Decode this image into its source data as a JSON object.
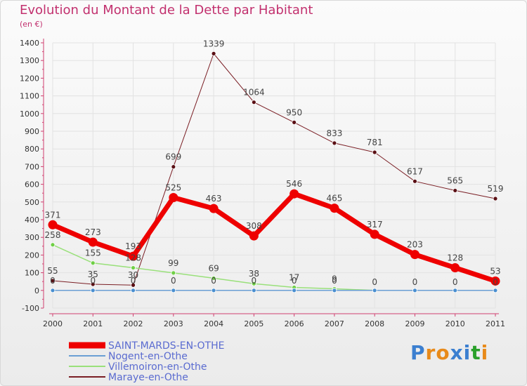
{
  "title": "Evolution du Montant de la Dette par Habitant",
  "subtitle": "(en €)",
  "logo": {
    "text": "Proxiti",
    "colors": [
      "#3b7fd0",
      "#e88a1a",
      "#e88a1a",
      "#3b7fd0",
      "#3b7fd0",
      "#2aa02a",
      "#e88a1a"
    ]
  },
  "chart_data": {
    "type": "line",
    "title": "Evolution du Montant de la Dette par Habitant",
    "ylabel": "(en €)",
    "xlabel": "",
    "ylim": [
      -100,
      1400
    ],
    "yticks": [
      -100,
      0,
      100,
      200,
      300,
      400,
      500,
      600,
      700,
      800,
      900,
      1000,
      1100,
      1200,
      1300,
      1400
    ],
    "x": [
      "2000",
      "2001",
      "2002",
      "2003",
      "2004",
      "2005",
      "2006",
      "2007",
      "2008",
      "2009",
      "2010",
      "2011"
    ],
    "series": [
      {
        "name": "Maraye-en-Othe",
        "color": "#7a1e24",
        "marker": "#5a0f14",
        "width": 1,
        "values": [
          55,
          35,
          30,
          699,
          1339,
          1064,
          950,
          833,
          781,
          617,
          565,
          519
        ],
        "labels": [
          "55",
          "35",
          "30",
          "699",
          "1339",
          "1064",
          "950",
          "833",
          "781",
          "617",
          "565",
          "519"
        ]
      },
      {
        "name": "Villemoiron-en-Othe",
        "color": "#99e07a",
        "marker": "#6fcf45",
        "width": 1.5,
        "values": [
          258,
          155,
          128,
          99,
          69,
          38,
          17,
          9,
          0,
          0,
          0,
          0
        ],
        "labels": [
          "258",
          "155",
          "128",
          "99",
          "69",
          "38",
          "17",
          "9",
          "",
          "",
          "",
          ""
        ]
      },
      {
        "name": "Nogent-en-Othe",
        "color": "#6a9fd4",
        "marker": "#4a8fd0",
        "width": 1.5,
        "values": [
          0,
          0,
          0,
          0,
          0,
          0,
          0,
          0,
          0,
          0,
          0,
          0
        ],
        "labels": [
          "0",
          "0",
          "0",
          "0",
          "0",
          "0",
          "0",
          "0",
          "",
          "",
          "",
          ""
        ]
      },
      {
        "name": "SAINT-MARDS-EN-OTHE",
        "color": "#ee0000",
        "marker": "#ee0000",
        "width": 7,
        "values": [
          371,
          273,
          193,
          525,
          463,
          308,
          546,
          465,
          317,
          203,
          128,
          53
        ],
        "labels": [
          "371",
          "273",
          "193",
          "525",
          "463",
          "308",
          "546",
          "465",
          "317",
          "203",
          "128",
          "53"
        ]
      }
    ],
    "extra_labels": [
      "0",
      "0",
      "0",
      "0"
    ],
    "legend": {
      "position": "bottom-left",
      "items": [
        "SAINT-MARDS-EN-OTHE",
        "Nogent-en-Othe",
        "Villemoiron-en-Othe",
        "Maraye-en-Othe"
      ]
    }
  }
}
